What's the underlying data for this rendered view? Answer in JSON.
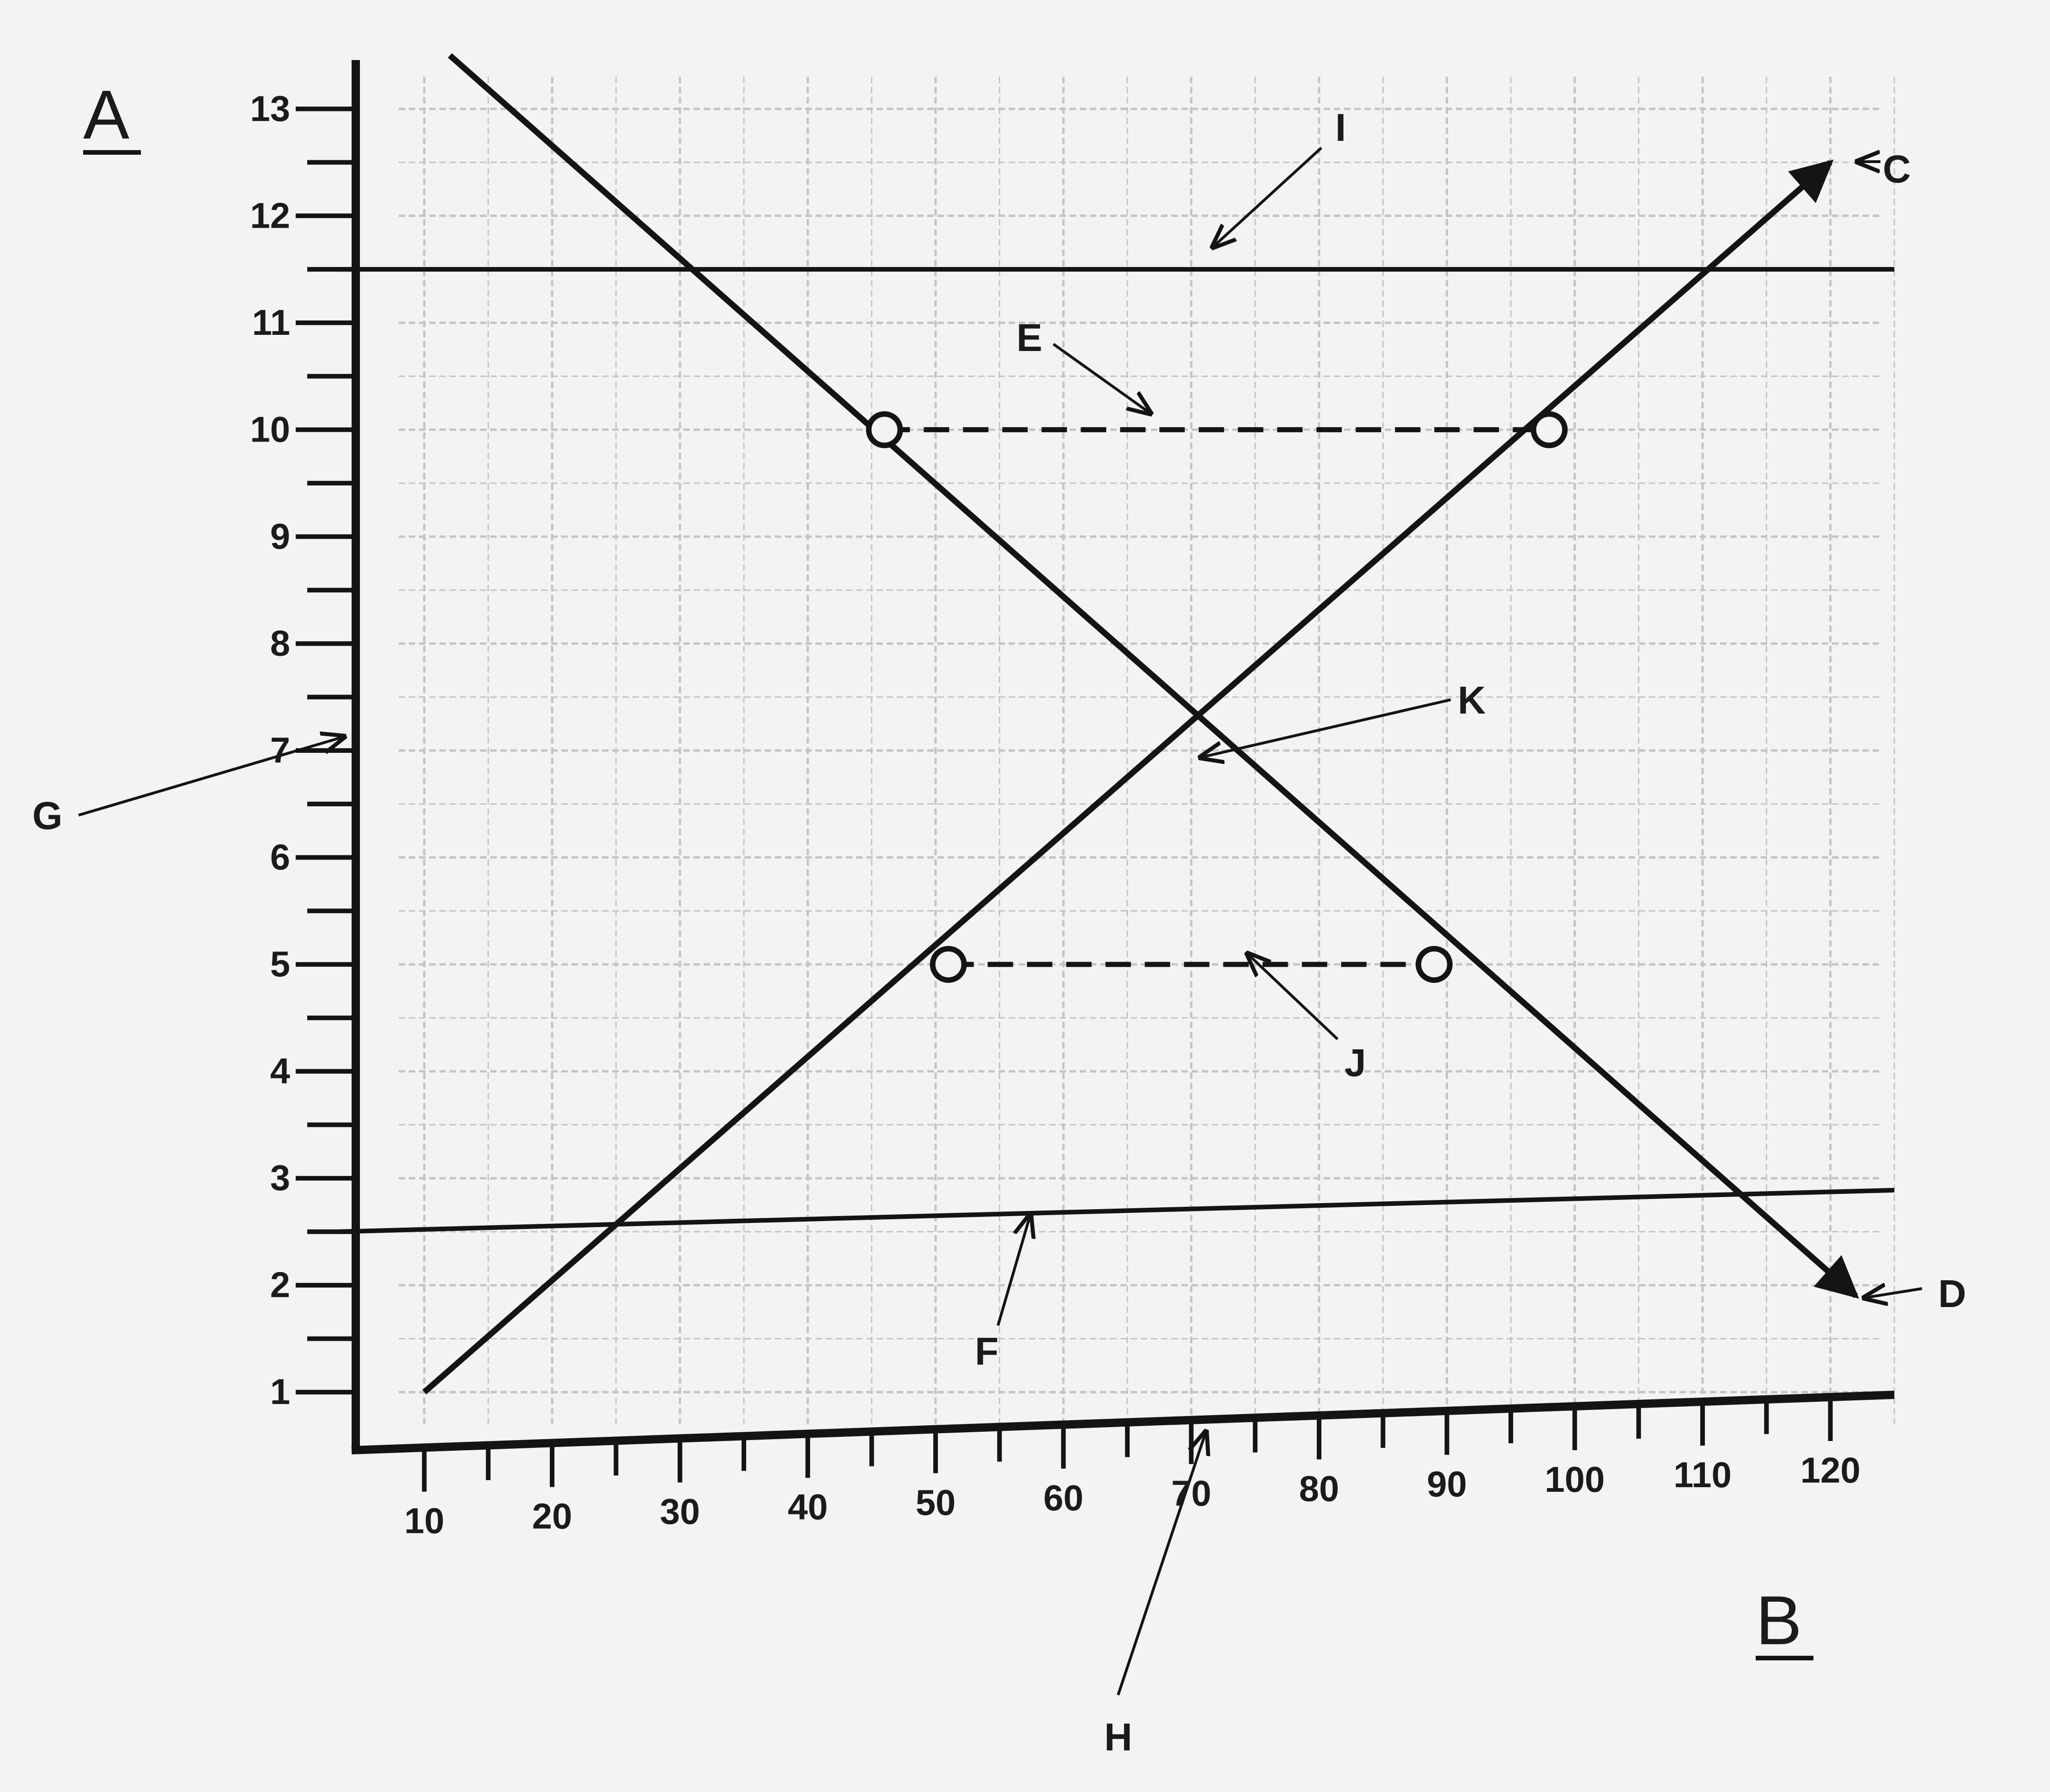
{
  "chart_data": {
    "type": "line",
    "ylabel": "A",
    "xlabel": "B",
    "xticks": [
      10,
      20,
      30,
      40,
      50,
      60,
      70,
      80,
      90,
      100,
      110,
      120
    ],
    "yticks": [
      1,
      2,
      3,
      4,
      5,
      6,
      7,
      8,
      9,
      10,
      11,
      12,
      13
    ],
    "xlim": [
      5,
      125
    ],
    "ylim": [
      0.5,
      13.5
    ],
    "grid": true,
    "series": [
      {
        "name": "C",
        "x": [
          10,
          120
        ],
        "y": [
          1,
          12.5
        ]
      },
      {
        "name": "D",
        "x": [
          12,
          122
        ],
        "y": [
          13.5,
          1.9
        ]
      }
    ],
    "horizontal_lines": [
      {
        "name": "I",
        "y": 11.5
      },
      {
        "name": "F",
        "y": 2.5
      }
    ],
    "dashed_segments": [
      {
        "name": "E",
        "y": 10,
        "x": [
          46,
          98
        ]
      },
      {
        "name": "J",
        "y": 5,
        "x": [
          51,
          89
        ]
      }
    ],
    "open_points": [
      {
        "x": 46,
        "y": 10
      },
      {
        "x": 98,
        "y": 10
      },
      {
        "x": 51,
        "y": 5
      },
      {
        "x": 89,
        "y": 5
      }
    ],
    "intersection": {
      "name": "K",
      "x": 70,
      "y": 7
    },
    "annotations": [
      {
        "label": "G",
        "points_to": "y-axis at 7"
      },
      {
        "label": "H",
        "points_to": "x-axis at 70"
      }
    ]
  }
}
